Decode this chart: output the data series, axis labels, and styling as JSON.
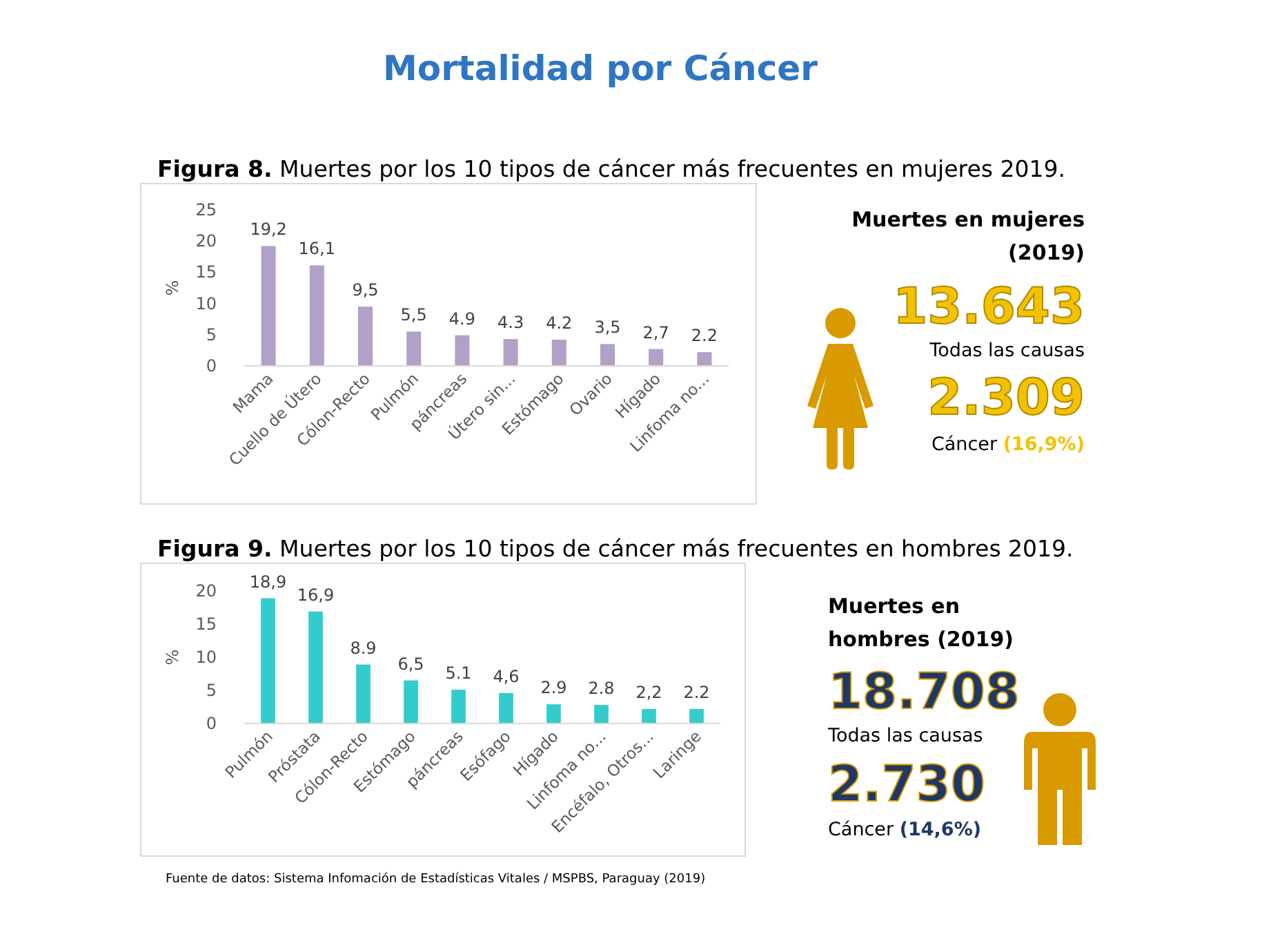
{
  "chart_data": [
    {
      "type": "bar",
      "title": "Mortalidad por Cáncer",
      "subtitle": "Figura 8. Muertes por los 10 tipos de cáncer más frecuentes en mujeres 2019.",
      "ylabel": "%",
      "categories": [
        "Mama",
        "Cuello de Útero",
        "Cólon-Recto",
        "Pulmón",
        "páncreas",
        "Útero sin...",
        "Estómago",
        "Ovario",
        "Hígado",
        "Linfoma no..."
      ],
      "series": [
        {
          "color": "#b1a0c7",
          "values": [
            19.2,
            16.1,
            9.5,
            5.5,
            4.9,
            4.3,
            4.2,
            3.5,
            2.7,
            2.2
          ],
          "value_labels": [
            "19,2",
            "16,1",
            "9,5",
            "5,5",
            "4.9",
            "4.3",
            "4.2",
            "3,5",
            "2,7",
            "2.2"
          ]
        }
      ],
      "ylim": [
        0,
        25
      ],
      "yticks": [
        0,
        5,
        10,
        15,
        20,
        25
      ],
      "grid": false
    },
    {
      "type": "other",
      "title": "Muertes en mujeres (2019)",
      "color": "#f2c200",
      "annotations": [
        "13.643",
        "Todas las causas",
        "2.309",
        "Cáncer",
        "(16,9%)"
      ]
    },
    {
      "type": "bar",
      "subtitle": "Figura 9. Muertes por los 10 tipos de cáncer más frecuentes en hombres 2019.",
      "ylabel": "%",
      "categories": [
        "Pulmón",
        "Próstata",
        "Cólon-Recto",
        "Estómago",
        "páncreas",
        "Esófago",
        "Hígado",
        "Linfoma no...",
        "Encéfalo, Otros...",
        "Laringe"
      ],
      "series": [
        {
          "color": "#33cccc",
          "values": [
            18.9,
            16.9,
            8.9,
            6.5,
            5.1,
            4.6,
            2.9,
            2.8,
            2.2,
            2.2
          ],
          "value_labels": [
            "18,9",
            "16,9",
            "8.9",
            "6,5",
            "5.1",
            "4,6",
            "2.9",
            "2.8",
            "2,2",
            "2.2"
          ]
        }
      ],
      "ylim": [
        0,
        20
      ],
      "yticks": [
        0,
        5,
        10,
        15,
        20
      ],
      "grid": false,
      "annotations": [
        "Fuente de datos: Sistema Infomación de Estadísticas Vitales / MSPBS, Paraguay (2019)"
      ]
    },
    {
      "type": "other",
      "title": "Muertes en hombres (2019)",
      "color": "#1f3864",
      "annotations": [
        "18.708",
        "Todas las causas",
        "2.730",
        "Cáncer",
        "(14,6%)"
      ]
    }
  ]
}
